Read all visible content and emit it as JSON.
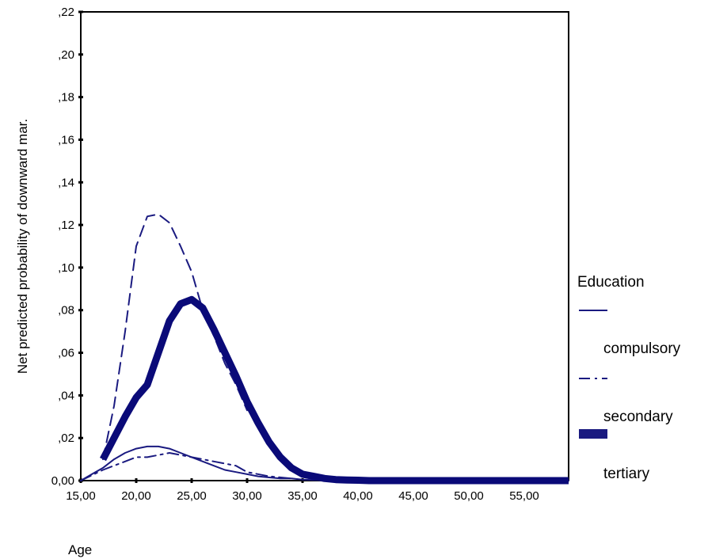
{
  "chart_data": {
    "type": "line",
    "title": "",
    "xlabel": "Age",
    "ylabel": "Net predicted probability of downward mar.",
    "xlim": [
      15,
      59
    ],
    "ylim": [
      0,
      0.22
    ],
    "x_ticks": [
      15,
      20,
      25,
      30,
      35,
      40,
      45,
      50,
      55
    ],
    "x_tick_labels": [
      "15,00",
      "20,00",
      "25,00",
      "30,00",
      "35,00",
      "40,00",
      "45,00",
      "50,00",
      "55,00"
    ],
    "y_ticks": [
      0,
      0.02,
      0.04,
      0.06,
      0.08,
      0.1,
      0.12,
      0.14,
      0.16,
      0.18,
      0.2,
      0.22
    ],
    "y_tick_labels": [
      "0,00",
      ",02",
      ",04",
      ",06",
      ",08",
      ",10",
      ",12",
      ",14",
      ",16",
      ",18",
      ",20",
      ",22"
    ],
    "grid": false,
    "legend": {
      "title": "Education",
      "position": "right"
    },
    "series": [
      {
        "name": "compulsory",
        "style": "solid-thin",
        "color": "#1a1a80",
        "x": [
          15,
          16,
          17,
          18,
          19,
          20,
          21,
          22,
          23,
          24,
          25,
          26,
          27,
          28,
          29,
          30,
          31,
          32,
          33,
          34,
          35,
          36,
          37,
          38,
          39,
          40,
          41,
          42,
          45,
          50,
          55,
          59
        ],
        "y": [
          0,
          0.003,
          0.006,
          0.01,
          0.013,
          0.015,
          0.016,
          0.016,
          0.015,
          0.013,
          0.011,
          0.009,
          0.007,
          0.005,
          0.004,
          0.003,
          0.002,
          0.0015,
          0.001,
          0.001,
          0.0005,
          0.0003,
          0.0002,
          0.0001,
          0.0001,
          0,
          0,
          0,
          0,
          0,
          0,
          0
        ]
      },
      {
        "name": "secondary",
        "style": "dash",
        "color": "#1a1a80",
        "x": [
          17,
          18,
          19,
          20,
          21,
          22,
          23,
          24,
          25,
          26,
          27,
          28,
          29,
          30
        ],
        "y": [
          0.01,
          0.035,
          0.07,
          0.11,
          0.124,
          0.125,
          0.121,
          0.11,
          0.098,
          0.08,
          0.068,
          0.055,
          0.045,
          0.033
        ]
      },
      {
        "name": "secondary-dashdot",
        "style": "dash-dot",
        "color": "#1a1a80",
        "x": [
          15,
          17,
          19,
          20,
          21,
          22,
          23,
          24,
          25,
          27,
          29,
          30,
          32,
          34
        ],
        "y": [
          0,
          0.005,
          0.009,
          0.011,
          0.011,
          0.012,
          0.013,
          0.012,
          0.011,
          0.009,
          0.007,
          0.004,
          0.002,
          0.001
        ]
      },
      {
        "name": "tertiary",
        "style": "thick",
        "color": "#0a0a78",
        "x": [
          17,
          18,
          19,
          20,
          21,
          22,
          23,
          24,
          25,
          26,
          27,
          28,
          29,
          30,
          31,
          32,
          33,
          34,
          35,
          36,
          37,
          38,
          39,
          40,
          41,
          42,
          45,
          50,
          55,
          59
        ],
        "y": [
          0.01,
          0.02,
          0.03,
          0.039,
          0.045,
          0.06,
          0.075,
          0.083,
          0.085,
          0.081,
          0.071,
          0.06,
          0.049,
          0.037,
          0.027,
          0.018,
          0.011,
          0.006,
          0.003,
          0.002,
          0.001,
          0.0005,
          0.0003,
          0.0002,
          0,
          0,
          0,
          0,
          0,
          0
        ]
      }
    ],
    "legend_items": [
      {
        "label": "compulsory",
        "style": "solid-thin"
      },
      {
        "label": "secondary",
        "style": "dash-dot"
      },
      {
        "label": "tertiary",
        "style": "thick"
      }
    ]
  }
}
